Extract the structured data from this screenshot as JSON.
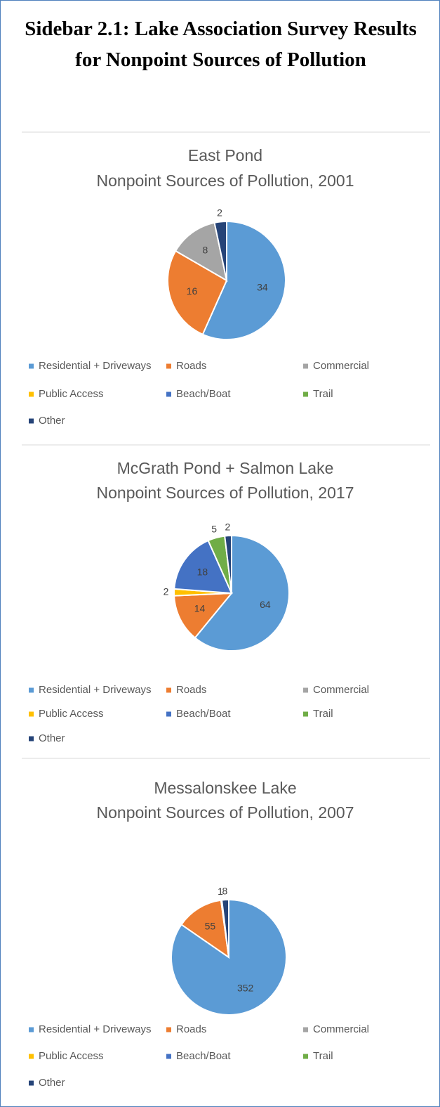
{
  "title": "Sidebar 2.1: Lake Association Survey Results for Nonpoint Sources of Pollution",
  "chart_data": [
    {
      "type": "pie",
      "title": "East Pond",
      "subtitle": "Nonpoint Sources of Pollution, 2001",
      "categories": [
        "Residential + Driveways",
        "Roads",
        "Commercial",
        "Public Access",
        "Beach/Boat",
        "Trail",
        "Other"
      ],
      "values": [
        34,
        16,
        8,
        0,
        0,
        0,
        2
      ],
      "colors": [
        "#5b9bd5",
        "#ed7d31",
        "#a5a5a5",
        "#ffc000",
        "#4472c4",
        "#70ad47",
        "#264478"
      ],
      "legend": "bottom"
    },
    {
      "type": "pie",
      "title": "McGrath Pond + Salmon Lake",
      "subtitle": "Nonpoint Sources of Pollution, 2017",
      "categories": [
        "Residential + Driveways",
        "Roads",
        "Commercial",
        "Public Access",
        "Beach/Boat",
        "Trail",
        "Other"
      ],
      "values": [
        64,
        14,
        0,
        2,
        18,
        5,
        2
      ],
      "colors": [
        "#5b9bd5",
        "#ed7d31",
        "#a5a5a5",
        "#ffc000",
        "#4472c4",
        "#70ad47",
        "#264478"
      ],
      "legend": "bottom"
    },
    {
      "type": "pie",
      "title": "Messalonskee Lake",
      "subtitle": "Nonpoint Sources of Pollution, 2007",
      "categories": [
        "Residential + Driveways",
        "Roads",
        "Commercial",
        "Public Access",
        "Beach/Boat",
        "Trail",
        "Other"
      ],
      "values": [
        352,
        55,
        0,
        1,
        0,
        0,
        8
      ],
      "colors": [
        "#5b9bd5",
        "#ed7d31",
        "#a5a5a5",
        "#ffc000",
        "#4472c4",
        "#70ad47",
        "#264478"
      ],
      "legend": "bottom"
    }
  ]
}
